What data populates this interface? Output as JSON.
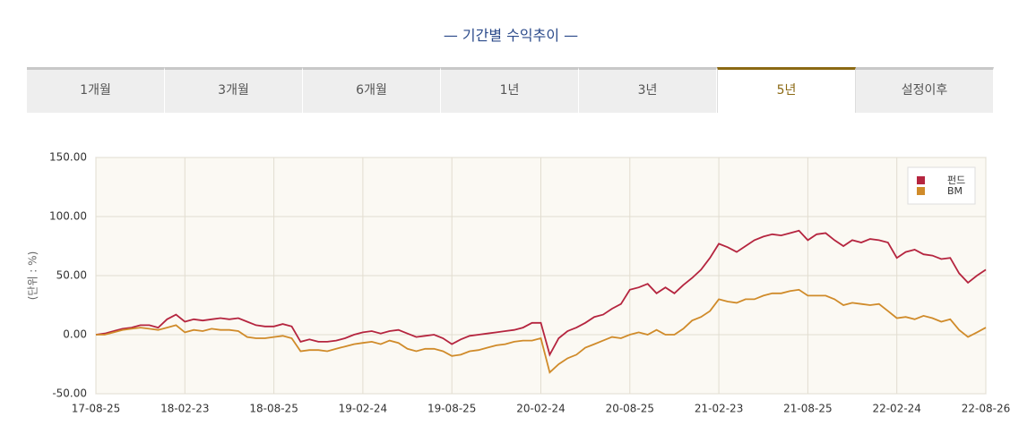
{
  "header": {
    "title": "기간별 수익추이"
  },
  "tabs": [
    "1개월",
    "3개월",
    "6개월",
    "1년",
    "3년",
    "5년",
    "설정이후"
  ],
  "active_tab_index": 5,
  "chart_data": {
    "type": "line",
    "y_label": "(단위 : %)",
    "categories": [
      "17-08-25",
      null,
      null,
      null,
      null,
      null,
      null,
      null,
      null,
      null,
      "18-02-23",
      null,
      null,
      null,
      null,
      null,
      null,
      null,
      null,
      null,
      "18-08-25",
      null,
      null,
      null,
      null,
      null,
      null,
      null,
      null,
      null,
      "19-02-24",
      null,
      null,
      null,
      null,
      null,
      null,
      null,
      null,
      null,
      "19-08-25",
      null,
      null,
      null,
      null,
      null,
      null,
      null,
      null,
      null,
      "20-02-24",
      null,
      null,
      null,
      null,
      null,
      null,
      null,
      null,
      null,
      "20-08-25",
      null,
      null,
      null,
      null,
      null,
      null,
      null,
      null,
      null,
      "21-02-23",
      null,
      null,
      null,
      null,
      null,
      null,
      null,
      null,
      null,
      "21-08-25",
      null,
      null,
      null,
      null,
      null,
      null,
      null,
      null,
      null,
      "22-02-24",
      null,
      null,
      null,
      null,
      null,
      null,
      null,
      null,
      null,
      "22-08-26"
    ],
    "series": [
      {
        "name": "펀드",
        "color": "#b5253f",
        "values": [
          0,
          1,
          3,
          5,
          6,
          8,
          8,
          6,
          13,
          17,
          11,
          13,
          12,
          13,
          14,
          13,
          14,
          11,
          8,
          7,
          7,
          9,
          7,
          -6,
          -4,
          -6,
          -6,
          -5,
          -3,
          0,
          2,
          3,
          1,
          3,
          4,
          1,
          -2,
          -1,
          0,
          -3,
          -8,
          -4,
          -1,
          0,
          1,
          2,
          3,
          4,
          6,
          10,
          10,
          -17,
          -3,
          3,
          6,
          10,
          15,
          17,
          22,
          26,
          38,
          40,
          43,
          35,
          40,
          35,
          42,
          48,
          55,
          65,
          77,
          74,
          70,
          75,
          80,
          83,
          85,
          84,
          86,
          88,
          80,
          85,
          86,
          80,
          75,
          80,
          78,
          81,
          80,
          78,
          65,
          70,
          72,
          68,
          67,
          64,
          65,
          52,
          44,
          50,
          55
        ]
      },
      {
        "name": "BM",
        "color": "#d08b2a",
        "values": [
          0,
          0,
          2,
          4,
          5,
          6,
          5,
          4,
          6,
          8,
          2,
          4,
          3,
          5,
          4,
          4,
          3,
          -2,
          -3,
          -3,
          -2,
          -1,
          -3,
          -14,
          -13,
          -13,
          -14,
          -12,
          -10,
          -8,
          -7,
          -6,
          -8,
          -5,
          -7,
          -12,
          -14,
          -12,
          -12,
          -14,
          -18,
          -17,
          -14,
          -13,
          -11,
          -9,
          -8,
          -6,
          -5,
          -5,
          -3,
          -32,
          -25,
          -20,
          -17,
          -11,
          -8,
          -5,
          -2,
          -3,
          0,
          2,
          0,
          4,
          0,
          0,
          5,
          12,
          15,
          20,
          30,
          28,
          27,
          30,
          30,
          33,
          35,
          35,
          37,
          38,
          33,
          33,
          33,
          30,
          25,
          27,
          26,
          25,
          26,
          20,
          14,
          15,
          13,
          16,
          14,
          11,
          13,
          4,
          -2,
          2,
          6
        ]
      }
    ],
    "ylim": [
      -50,
      150
    ],
    "yticks": [
      {
        "value": -50,
        "label": "-50.00"
      },
      {
        "value": 0,
        "label": "0.00"
      },
      {
        "value": 50,
        "label": "50.00"
      },
      {
        "value": 100,
        "label": "100.00"
      },
      {
        "value": 150,
        "label": "150.00"
      }
    ],
    "grid": true,
    "legend": "top-right"
  }
}
